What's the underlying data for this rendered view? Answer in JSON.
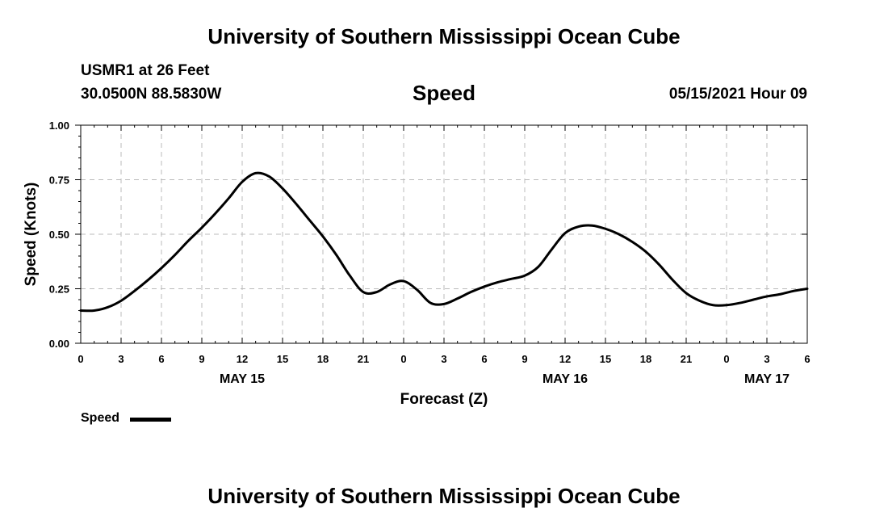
{
  "header": {
    "title": "University of Southern Mississippi Ocean Cube",
    "station": "USMR1 at 26 Feet",
    "coordinates": "30.0500N  88.5830W",
    "plot_title": "Speed",
    "datetime": "05/15/2021 Hour 09"
  },
  "footer": {
    "title": "University of Southern Mississippi Ocean Cube"
  },
  "legend": {
    "label": "Speed"
  },
  "colors": {
    "line": "#000000",
    "grid": "#bbbbbb",
    "background": "#ffffff"
  },
  "chart_data": {
    "type": "line",
    "title": "Speed",
    "xlabel": "Forecast (Z)",
    "ylabel": "Speed (Knots)",
    "x_unit": "hours from 2021-05-15 00Z",
    "xlim": [
      0,
      54
    ],
    "ylim": [
      0,
      1.0
    ],
    "x_ticks": [
      0,
      3,
      6,
      9,
      12,
      15,
      18,
      21,
      24,
      27,
      30,
      33,
      36,
      39,
      42,
      45,
      48,
      51,
      54
    ],
    "x_tick_labels": [
      "0",
      "3",
      "6",
      "9",
      "12",
      "15",
      "18",
      "21",
      "0",
      "3",
      "6",
      "9",
      "12",
      "15",
      "18",
      "21",
      "0",
      "3",
      "6"
    ],
    "y_ticks": [
      0,
      0.25,
      0.5,
      0.75,
      1.0
    ],
    "y_tick_labels": [
      "0.00",
      "0.25",
      "0.50",
      "0.75",
      "1.00"
    ],
    "day_labels": [
      {
        "x": 12,
        "label": "MAY 15"
      },
      {
        "x": 36,
        "label": "MAY 16"
      },
      {
        "x": 51,
        "label": "MAY 17"
      }
    ],
    "grid": true,
    "legend_position": "bottom-left",
    "series": [
      {
        "name": "Speed",
        "x": [
          0,
          1,
          2,
          3,
          4,
          5,
          6,
          7,
          8,
          9,
          10,
          11,
          12,
          13,
          14,
          15,
          16,
          17,
          18,
          19,
          20,
          21,
          22,
          23,
          24,
          25,
          26,
          27,
          28,
          29,
          30,
          31,
          32,
          33,
          34,
          35,
          36,
          37,
          38,
          39,
          40,
          41,
          42,
          43,
          44,
          45,
          46,
          47,
          48,
          49,
          50,
          51,
          52,
          53,
          54
        ],
        "y": [
          0.15,
          0.15,
          0.165,
          0.195,
          0.24,
          0.29,
          0.345,
          0.405,
          0.47,
          0.53,
          0.595,
          0.665,
          0.74,
          0.78,
          0.765,
          0.71,
          0.64,
          0.565,
          0.49,
          0.405,
          0.31,
          0.235,
          0.235,
          0.27,
          0.285,
          0.245,
          0.185,
          0.18,
          0.205,
          0.235,
          0.26,
          0.28,
          0.295,
          0.31,
          0.35,
          0.43,
          0.505,
          0.535,
          0.54,
          0.525,
          0.5,
          0.465,
          0.42,
          0.36,
          0.29,
          0.23,
          0.195,
          0.175,
          0.175,
          0.185,
          0.2,
          0.215,
          0.225,
          0.24,
          0.25
        ]
      }
    ]
  }
}
